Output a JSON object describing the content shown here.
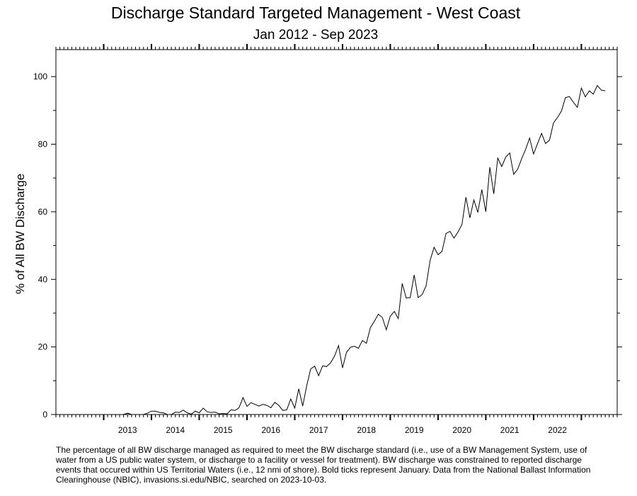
{
  "chart_data": {
    "type": "line",
    "title": "Discharge Standard Targeted Management - West Coast",
    "subtitle": "Jan 2012 - Sep 2023",
    "xlabel": "",
    "ylabel": "% of All BW Discharge",
    "ylim": [
      0,
      108
    ],
    "yticks": [
      0,
      20,
      40,
      60,
      80,
      100
    ],
    "xticks": [
      "2013",
      "2014",
      "2015",
      "2016",
      "2017",
      "2018",
      "2019",
      "2020",
      "2021",
      "2022"
    ],
    "grid": false,
    "x_start": "2012-01",
    "x_end": "2023-09",
    "series": [
      {
        "values": [
          0,
          0,
          0,
          0,
          0,
          0,
          0,
          0,
          0,
          0,
          0,
          0,
          0,
          0,
          0,
          0,
          0,
          0,
          0.4,
          0,
          0,
          0,
          0,
          0.4,
          1,
          1,
          0.6,
          0.5,
          0,
          0,
          0.7,
          0.6,
          1.3,
          0.5,
          0.1,
          1,
          0.5,
          1.9,
          0.8,
          0.6,
          0.7,
          0.2,
          0.3,
          0.2,
          1.4,
          1.2,
          2,
          5,
          2.4,
          3.5,
          3,
          2.5,
          3,
          2.7,
          2,
          3.6,
          2.7,
          1.2,
          1.4,
          4.6,
          1.9,
          7.6,
          2.5,
          8.5,
          13.5,
          14.3,
          11.5,
          14.4,
          14.2,
          15.3,
          17.3,
          20.4,
          13.8,
          18.4,
          19.9,
          20.2,
          19.6,
          21.9,
          21.1,
          25.7,
          27.6,
          29.7,
          28.7,
          25.1,
          29.1,
          30.5,
          28.4,
          38.8,
          34.5,
          34.6,
          41.3,
          34.6,
          35.5,
          38.1,
          45.6,
          49.5,
          47.3,
          48.3,
          53.6,
          54.2,
          52.2,
          54,
          56.2,
          64.3,
          58.2,
          63.5,
          59.8,
          66.6,
          60,
          73.2,
          65.3,
          75.9,
          73.4,
          76.2,
          77.4,
          71.1,
          72.6,
          75.7,
          78.5,
          81.8,
          77.1,
          80.2,
          83.2,
          80.2,
          81.2,
          86.3,
          87.9,
          89.8,
          93.8,
          94.1,
          92.4,
          90.9,
          96.6,
          94,
          95.8,
          94.8,
          97.4,
          96,
          95.8
        ]
      }
    ]
  },
  "caption": "The percentage of all BW discharge managed as required to meet the BW discharge standard (i.e., use of a BW Management System, use of water from a US public water system, or discharge to a facility or vessel for treatment). BW discharge was constrained to reported discharge events that occured within US Territorial Waters (i.e., 12 nmi of shore). Bold ticks represent January. Data from the National Ballast Information Clearinghouse (NBIC), invasions.si.edu/NBIC, searched on 2023-10-03."
}
